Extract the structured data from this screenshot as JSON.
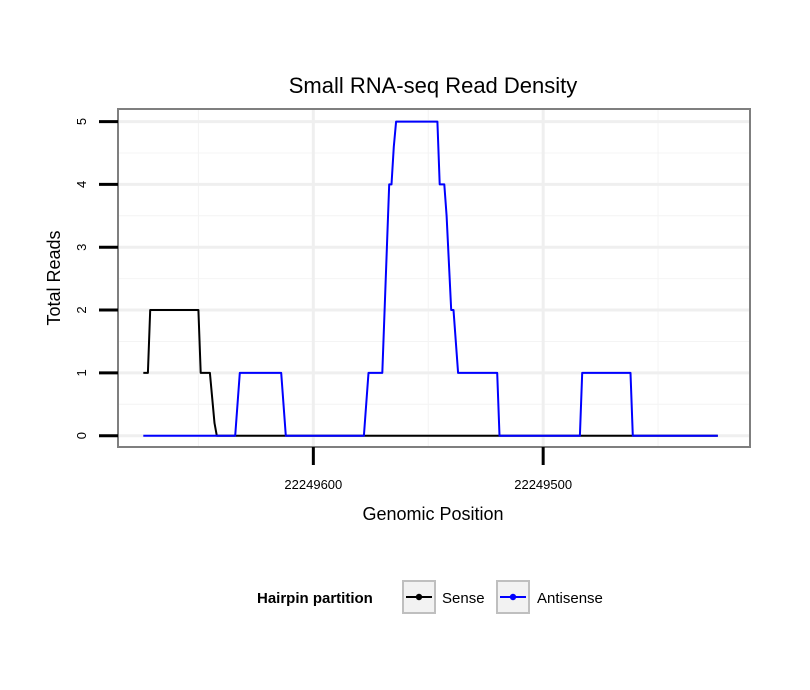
{
  "chart_data": {
    "type": "line",
    "title": "Small RNA-seq Read Density",
    "xlabel": "Genomic Position",
    "ylabel": "Total Reads",
    "x_reversed": true,
    "xlim": [
      22249685,
      22249410
    ],
    "ylim": [
      -0.18,
      5.2
    ],
    "x_ticks": [
      22249600,
      22249500
    ],
    "x_tick_labels": [
      "22249600",
      "22249500"
    ],
    "y_ticks": [
      0,
      1,
      2,
      3,
      4,
      5
    ],
    "y_tick_labels": [
      "0",
      "1",
      "2",
      "3",
      "4",
      "5"
    ],
    "minor_x_gridlines": [
      22249650,
      22249550,
      22249450
    ],
    "minor_y_gridlines": [
      0.5,
      1.5,
      2.5,
      3.5,
      4.5
    ],
    "legend": {
      "title": "Hairpin partition",
      "position": "bottom",
      "entries": [
        "Sense",
        "Antisense"
      ]
    },
    "series": [
      {
        "name": "Sense",
        "color": "#000000",
        "x": [
          22249674,
          22249672,
          22249671,
          22249650,
          22249649,
          22249645,
          22249644,
          22249643,
          22249642,
          22249424
        ],
        "y": [
          1,
          1,
          2,
          2,
          1,
          1,
          0.6,
          0.2,
          0,
          0
        ]
      },
      {
        "name": "Antisense",
        "color": "#0000ff",
        "x": [
          22249674,
          22249634,
          22249632,
          22249614,
          22249612,
          22249578,
          22249576,
          22249570,
          22249568,
          22249567,
          22249566,
          22249565,
          22249564,
          22249546,
          22249545,
          22249543,
          22249542,
          22249540,
          22249539,
          22249537,
          22249536,
          22249520,
          22249519,
          22249484,
          22249483,
          22249462,
          22249461,
          22249424
        ],
        "y": [
          0,
          0,
          1,
          1,
          0,
          0,
          1,
          1,
          3,
          4,
          4,
          4.6,
          5,
          5,
          4,
          4,
          3.5,
          2,
          2,
          1,
          1,
          1,
          0,
          0,
          1,
          1,
          0,
          0
        ]
      }
    ]
  }
}
